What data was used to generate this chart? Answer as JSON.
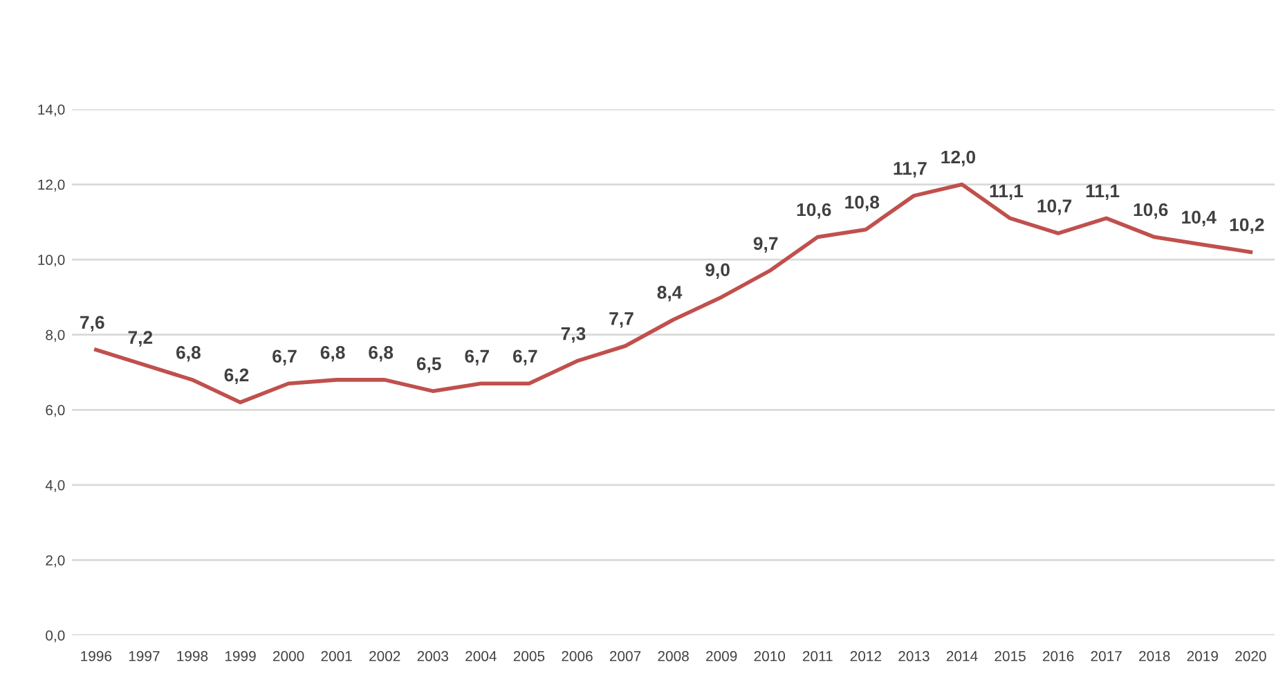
{
  "chart_data": {
    "type": "line",
    "categories": [
      "1996",
      "1997",
      "1998",
      "1999",
      "2000",
      "2001",
      "2002",
      "2003",
      "2004",
      "2005",
      "2006",
      "2007",
      "2008",
      "2009",
      "2010",
      "2011",
      "2012",
      "2013",
      "2014",
      "2015",
      "2016",
      "2017",
      "2018",
      "2019",
      "2020"
    ],
    "series": [
      {
        "color": "#c0504d",
        "values": [
          7.6,
          7.2,
          6.8,
          6.2,
          6.7,
          6.8,
          6.8,
          6.5,
          6.7,
          6.7,
          7.3,
          7.7,
          8.4,
          9.0,
          9.7,
          10.6,
          10.8,
          11.7,
          12.0,
          11.1,
          10.7,
          11.1,
          10.6,
          10.4,
          10.2
        ],
        "value_labels": [
          "7,6",
          "7,2",
          "6,8",
          "6,2",
          "6,7",
          "6,8",
          "6,8",
          "6,5",
          "6,7",
          "6,7",
          "7,3",
          "7,7",
          "8,4",
          "9,0",
          "9,7",
          "10,6",
          "10,8",
          "11,7",
          "12,0",
          "11,1",
          "10,7",
          "11,1",
          "10,6",
          "10,4",
          "10,2"
        ]
      }
    ],
    "ylim": [
      0,
      14
    ],
    "yticks": [
      {
        "value": 0,
        "label": "0,0"
      },
      {
        "value": 2,
        "label": "2,0"
      },
      {
        "value": 4,
        "label": "4,0"
      },
      {
        "value": 6,
        "label": "6,0"
      },
      {
        "value": 8,
        "label": "8,0"
      },
      {
        "value": 10,
        "label": "10,0"
      },
      {
        "value": 12,
        "label": "12,0"
      },
      {
        "value": 14,
        "label": "14,0"
      }
    ],
    "grid": "y",
    "marker": "none",
    "line_style": "solid"
  }
}
